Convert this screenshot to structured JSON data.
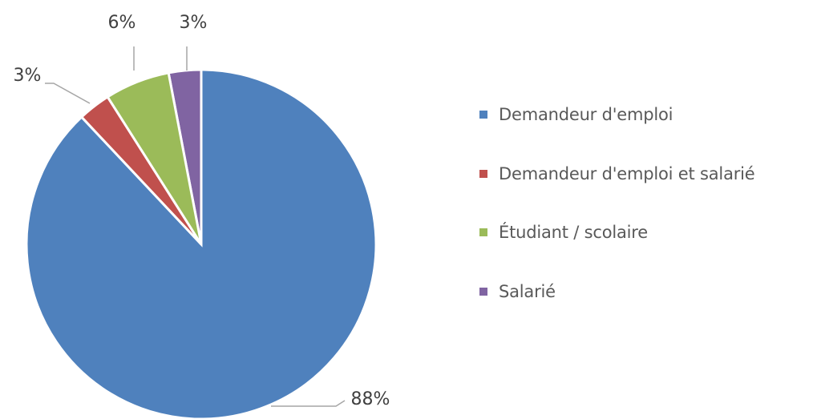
{
  "chart_data": {
    "type": "pie",
    "title": "",
    "start_angle_deg": 0,
    "direction": "clockwise",
    "legend_position": "right",
    "slices": [
      {
        "name": "Salarié",
        "value": 3,
        "label": "3%",
        "color": "#8064A2"
      },
      {
        "name": "Demandeur d'emploi",
        "value": 88,
        "label": "88%",
        "color": "#4F81BD"
      },
      {
        "name": "Demandeur d'emploi et salarié",
        "value": 3,
        "label": "3%",
        "color": "#C0504D"
      },
      {
        "name": "Étudiant / scolaire",
        "value": 6,
        "label": "6%",
        "color": "#9BBB59"
      }
    ],
    "legend": [
      {
        "name": "Demandeur d'emploi",
        "color": "#4F81BD"
      },
      {
        "name": "Demandeur d'emploi et salarié",
        "color": "#C0504D"
      },
      {
        "name": "Étudiant / scolaire",
        "color": "#9BBB59"
      },
      {
        "name": "Salarié",
        "color": "#8064A2"
      }
    ]
  }
}
